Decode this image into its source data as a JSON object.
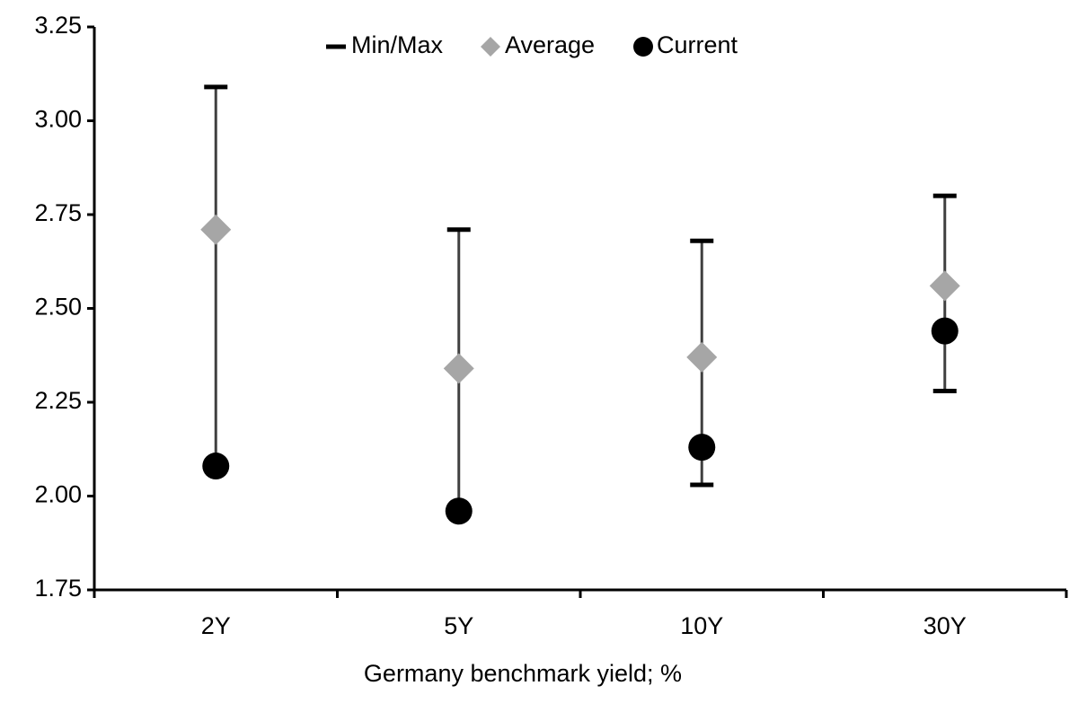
{
  "chart_data": {
    "type": "range",
    "x_label": "Germany benchmark yield; %",
    "categories": [
      "2Y",
      "5Y",
      "10Y",
      "30Y"
    ],
    "series": [
      {
        "name": "Min/Max",
        "color": "#404040",
        "min": [
          2.08,
          1.96,
          2.03,
          2.28
        ],
        "max": [
          3.09,
          2.71,
          2.68,
          2.8
        ]
      },
      {
        "name": "Average",
        "color": "#a6a6a6",
        "values": [
          2.71,
          2.34,
          2.37,
          2.56
        ]
      },
      {
        "name": "Current",
        "color": "#000000",
        "values": [
          2.08,
          1.96,
          2.13,
          2.44
        ]
      }
    ],
    "ylim": [
      1.75,
      3.25
    ],
    "yticks": [
      1.75,
      {
        "value": 2,
        "label": "2.00"
      },
      2.25,
      {
        "value": 2.5,
        "label": "2.50"
      },
      2.75,
      {
        "value": 3,
        "label": "3.00"
      },
      3.25
    ],
    "legend": "top"
  }
}
